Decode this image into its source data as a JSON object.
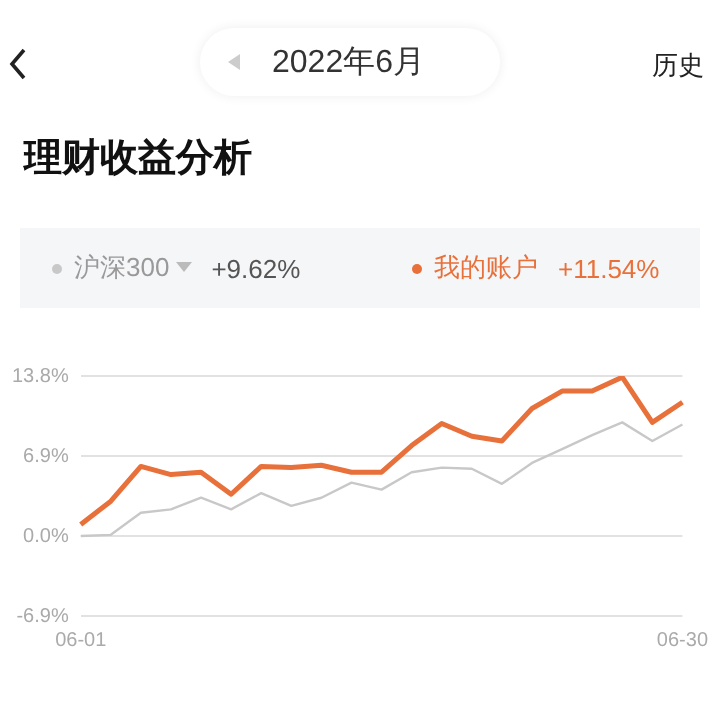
{
  "chart_data": {
    "type": "line",
    "title": "理财收益分析",
    "subtitle": "2022年6月",
    "categories": [
      "06-01",
      null,
      null,
      null,
      null,
      null,
      null,
      null,
      null,
      null,
      null,
      null,
      null,
      null,
      null,
      null,
      null,
      null,
      null,
      null,
      "06-30"
    ],
    "series": [
      {
        "name": "沪深300",
        "color": "#c8c8c8",
        "values": [
          0,
          0.1,
          2,
          2.3,
          3.3,
          2.3,
          3.7,
          2.6,
          3.3,
          4.6,
          4,
          5.5,
          5.9,
          5.8,
          4.5,
          6.3,
          7.5,
          8.7,
          9.8,
          8.2,
          9.62
        ]
      },
      {
        "name": "我的账户",
        "color": "#e8703a",
        "values": [
          1,
          3,
          6,
          5.3,
          5.5,
          3.6,
          6,
          5.9,
          6.1,
          5.5,
          5.5,
          7.8,
          9.7,
          8.6,
          8.2,
          11,
          12.5,
          12.5,
          13.7,
          9.8,
          11.54
        ]
      }
    ],
    "ylim": [
      -6.9,
      13.8
    ],
    "yticks": [
      {
        "value": -6.9,
        "label": "-6.9%"
      },
      {
        "value": 0,
        "label": "0.0%"
      },
      {
        "value": 6.9,
        "label": "6.9%"
      },
      {
        "value": 13.8,
        "label": "13.8%"
      }
    ],
    "grid": "y",
    "legend": "top",
    "marker": "none",
    "line_style": "solid",
    "annotations": [
      "+9.62%",
      "+11.54%",
      "历史"
    ]
  }
}
